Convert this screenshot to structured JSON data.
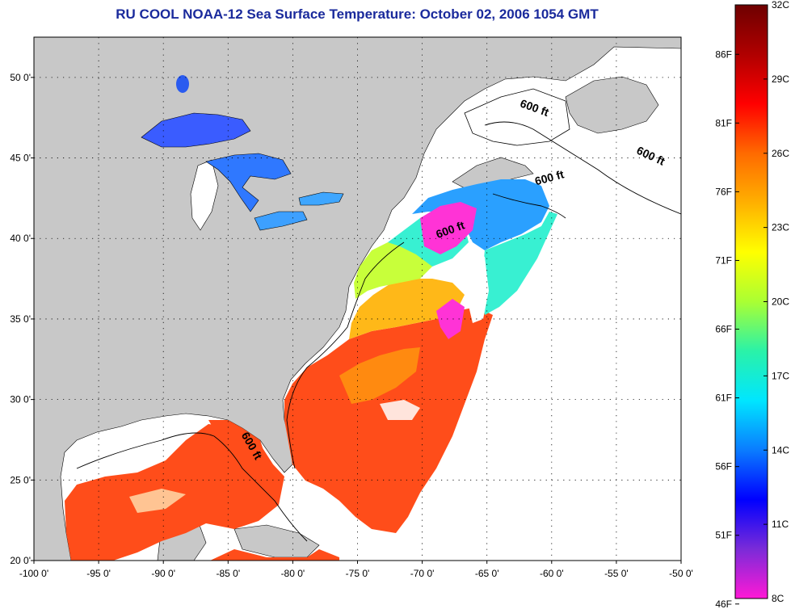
{
  "title": "RU COOL  NOAA-12  Sea Surface Temperature:  October 02, 2006 1054 GMT",
  "map": {
    "lon_range": [
      -100,
      -50
    ],
    "lat_range": [
      20,
      52.5
    ],
    "lon_ticks": [
      "-100 0'",
      "-95 0'",
      "-90 0'",
      "-85 0'",
      "-80 0'",
      "-75 0'",
      "-70 0'",
      "-65 0'",
      "-60 0'",
      "-55 0'",
      "-50 0'"
    ],
    "lon_tick_values": [
      -100,
      -95,
      -90,
      -85,
      -80,
      -75,
      -70,
      -65,
      -60,
      -55,
      -50
    ],
    "lat_ticks": [
      "20 0'",
      "25 0'",
      "30 0'",
      "35 0'",
      "40 0'",
      "45 0'",
      "50 0'"
    ],
    "lat_tick_values": [
      20,
      25,
      30,
      35,
      40,
      45,
      50
    ],
    "land_color": "#c8c8c8",
    "cloud_color": "#ffffff",
    "grid": "dotted"
  },
  "contour_labels": [
    {
      "text": "600 ft",
      "lon": -62.5,
      "lat": 48.2
    },
    {
      "text": "600 ft",
      "lon": -53.5,
      "lat": 45.3
    },
    {
      "text": "600 ft",
      "lon": -61.2,
      "lat": 43.3
    },
    {
      "text": "600 ft",
      "lon": -68.8,
      "lat": 40.0
    },
    {
      "text": "600 ft",
      "lon": -84.0,
      "lat": 27.8
    }
  ],
  "colorbar": {
    "fahrenheit": [
      "86F",
      "81F",
      "76F",
      "71F",
      "66F",
      "61F",
      "56F",
      "51F",
      "46F"
    ],
    "fahrenheit_values": [
      86,
      81,
      76,
      71,
      66,
      61,
      56,
      51,
      46
    ],
    "celsius": [
      "32C",
      "29C",
      "26C",
      "23C",
      "20C",
      "17C",
      "14C",
      "11C",
      "8C"
    ],
    "celsius_values": [
      32,
      29,
      26,
      23,
      20,
      17,
      14,
      11,
      8
    ],
    "range_c": [
      8,
      32
    ],
    "colors": [
      "#ff19d6",
      "#7a2bd8",
      "#0000ff",
      "#0a7cff",
      "#00e6ff",
      "#2af2a8",
      "#aaff33",
      "#ffff00",
      "#ffb000",
      "#ff6a00",
      "#ff0000",
      "#b00000",
      "#6e0000"
    ]
  },
  "sst_regions": [
    {
      "color": "#ff4d1a",
      "temp_c": 28
    },
    {
      "color": "#ff8a10",
      "temp_c": 26
    },
    {
      "color": "#ffb818",
      "temp_c": 25
    },
    {
      "color": "#c8ff3a",
      "temp_c": 21
    },
    {
      "color": "#38f0d2",
      "temp_c": 18
    },
    {
      "color": "#2aa0ff",
      "temp_c": 15
    },
    {
      "color": "#3060ff",
      "temp_c": 12
    },
    {
      "color": "#ff33d6",
      "temp_c": 9
    }
  ]
}
